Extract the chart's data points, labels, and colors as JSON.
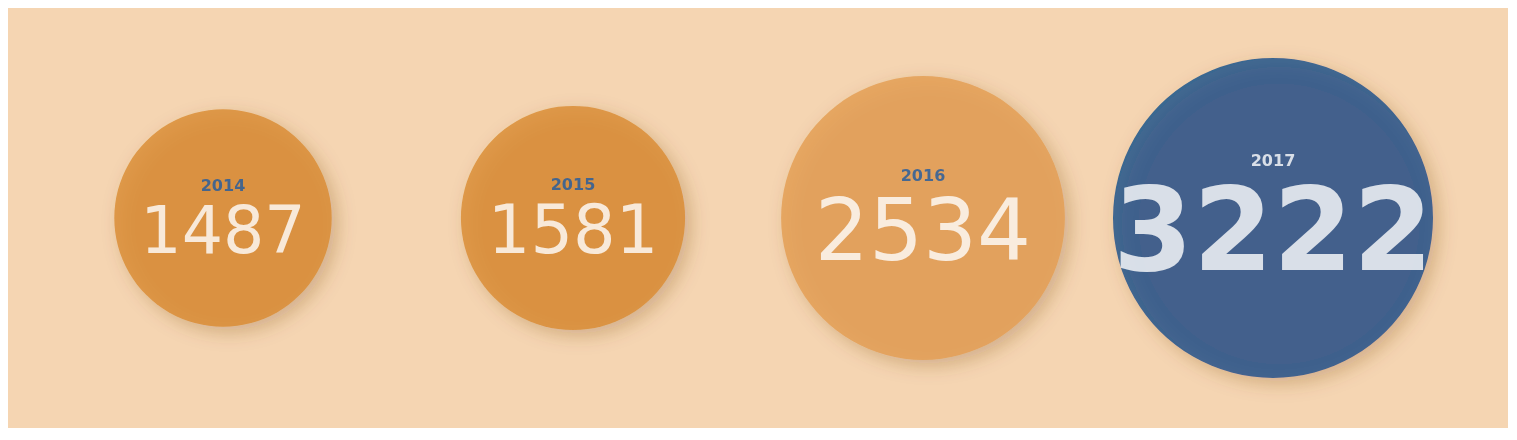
{
  "chart_data": {
    "type": "other",
    "categories": [
      "2014",
      "2015",
      "2016",
      "2017"
    ],
    "values": [
      1487,
      1581,
      2534,
      3222
    ],
    "colors": [
      "#d98a2e",
      "#d98a2e",
      "#e39c50",
      "#0e4d8a"
    ],
    "data_labels": true
  }
}
